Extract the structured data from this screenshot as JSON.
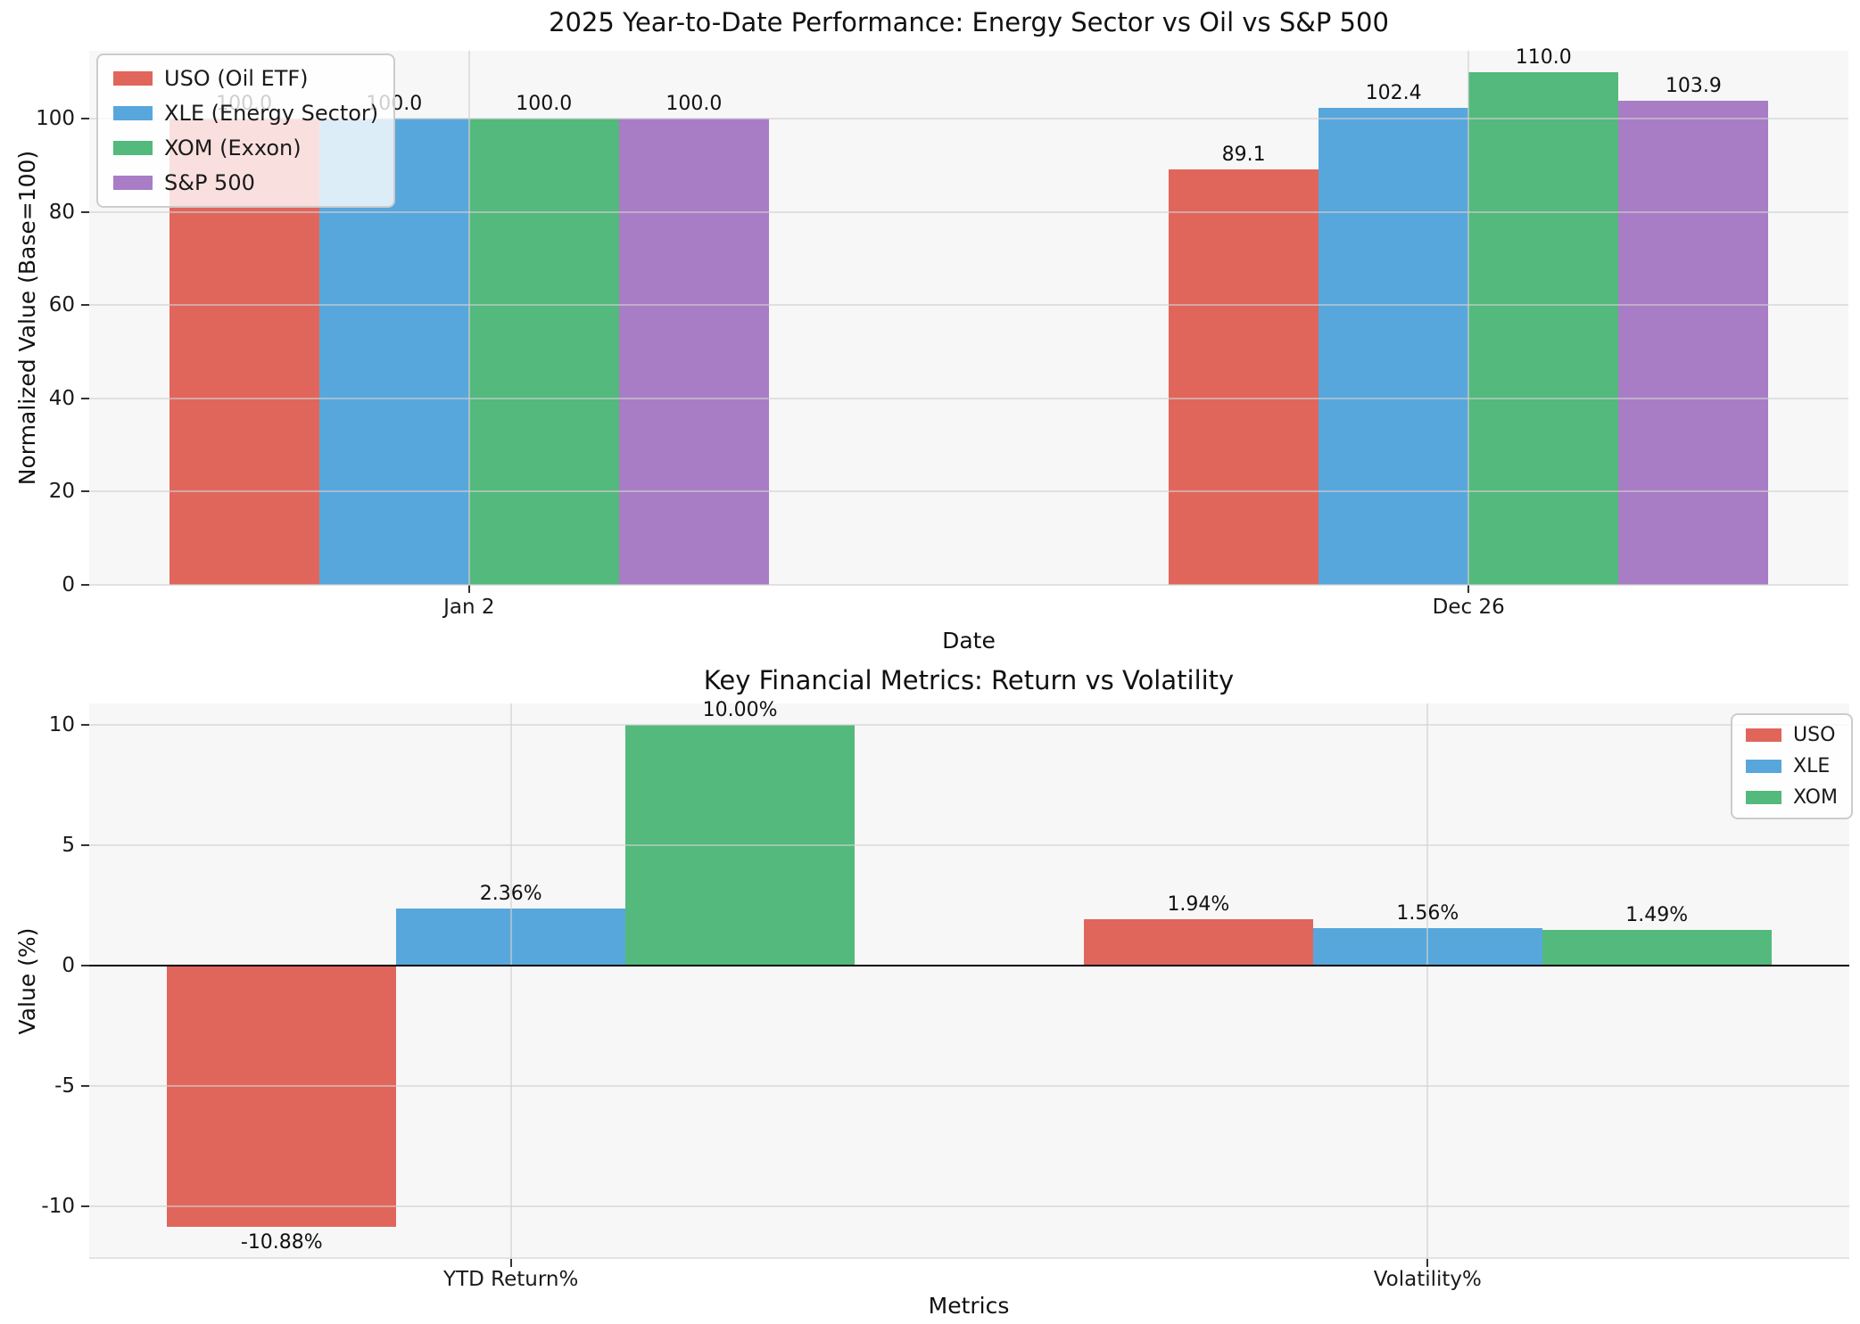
{
  "figure": {
    "background": "#ffffff",
    "plot_background": "#f7f7f7",
    "grid_color": "rgba(208,208,208,0.6)",
    "tick_color": "#333333",
    "text_color": "#1a1a1a"
  },
  "chart_data": [
    {
      "type": "bar",
      "title": "2025 Year-to-Date Performance: Energy Sector vs Oil vs S&P 500",
      "xlabel": "Date",
      "ylabel": "Normalized Value (Base=100)",
      "categories": [
        "Jan 2",
        "Dec 26"
      ],
      "series": [
        {
          "name": "USO (Oil ETF)",
          "color": "#E0665C",
          "values": [
            100.0,
            89.1
          ],
          "labels": [
            "100.0",
            "89.1"
          ]
        },
        {
          "name": "XLE (Energy Sector)",
          "color": "#58A7DC",
          "values": [
            100.0,
            102.4
          ],
          "labels": [
            "100.0",
            "102.4"
          ]
        },
        {
          "name": "XOM (Exxon)",
          "color": "#53B97C",
          "values": [
            100.0,
            110.0
          ],
          "labels": [
            "100.0",
            "110.0"
          ]
        },
        {
          "name": "S&P 500",
          "color": "#A87DC5",
          "values": [
            100.0,
            103.9
          ],
          "labels": [
            "100.0",
            "103.9"
          ]
        }
      ],
      "yticks": [
        0,
        20,
        40,
        60,
        80,
        100
      ],
      "ylim": [
        0,
        114.6
      ],
      "xlim": [
        -0.38,
        1.38
      ],
      "bar_width": 0.15,
      "grid": true,
      "zero_line": false,
      "legend": {
        "position": "upper-left",
        "labels": [
          "USO (Oil ETF)",
          "XLE (Energy Sector)",
          "XOM (Exxon)",
          "S&P 500"
        ]
      }
    },
    {
      "type": "bar",
      "title": "Key Financial Metrics: Return vs Volatility",
      "xlabel": "Metrics",
      "ylabel": "Value (%)",
      "categories": [
        "YTD Return%",
        "Volatility%"
      ],
      "series": [
        {
          "name": "USO",
          "color": "#E0665C",
          "values": [
            -10.88,
            1.94
          ],
          "labels": [
            "-10.88%",
            "1.94%"
          ]
        },
        {
          "name": "XLE",
          "color": "#58A7DC",
          "values": [
            2.36,
            1.56
          ],
          "labels": [
            "2.36%",
            "1.56%"
          ]
        },
        {
          "name": "XOM",
          "color": "#53B97C",
          "values": [
            10.0,
            1.49
          ],
          "labels": [
            "10.00%",
            "1.49%"
          ]
        }
      ],
      "yticks": [
        -10,
        -5,
        0,
        5,
        10
      ],
      "ylim": [
        -12.2,
        10.9
      ],
      "xlim": [
        -0.46,
        1.46
      ],
      "bar_width": 0.25,
      "grid": true,
      "zero_line": true,
      "legend": {
        "position": "upper-right",
        "labels": [
          "USO",
          "XLE",
          "XOM"
        ]
      }
    }
  ]
}
